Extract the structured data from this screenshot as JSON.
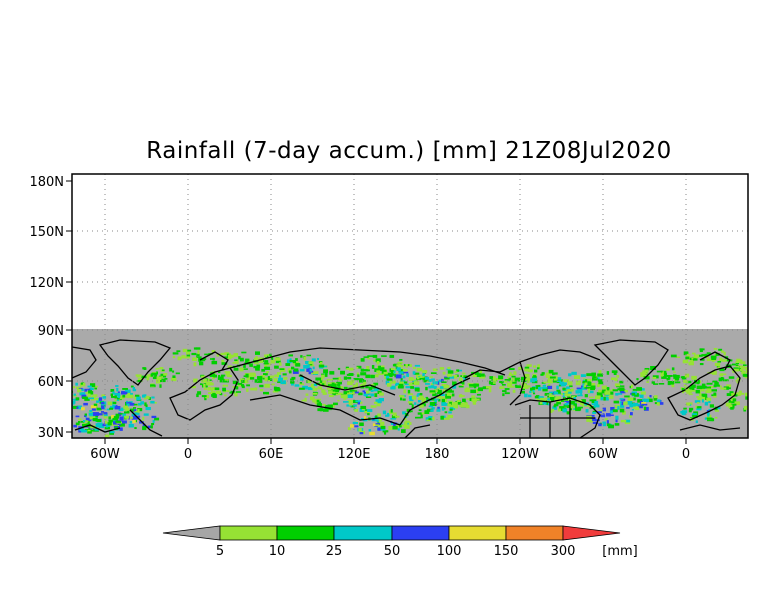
{
  "title": "Rainfall (7-day accum.) [mm] 21Z08Jul2020",
  "map": {
    "lat_ticks": [
      "180N",
      "150N",
      "120N",
      "90N",
      "60N",
      "30N"
    ],
    "lon_ticks": [
      "60W",
      "0",
      "60E",
      "120E",
      "180",
      "120W",
      "60W",
      "0"
    ],
    "data_lat_range": [
      "30N",
      "90N"
    ],
    "grid": "dotted",
    "no_data_color": "#aaaaaa",
    "coastline_color": "#000000"
  },
  "colorbar": {
    "unit": "[mm]",
    "labels": [
      "5",
      "10",
      "25",
      "50",
      "100",
      "150",
      "300"
    ],
    "colors": [
      "#a6a6a6",
      "#96e234",
      "#00cf00",
      "#00c8c8",
      "#2b3ff2",
      "#e6dc32",
      "#f08228",
      "#f03c3c"
    ]
  }
}
